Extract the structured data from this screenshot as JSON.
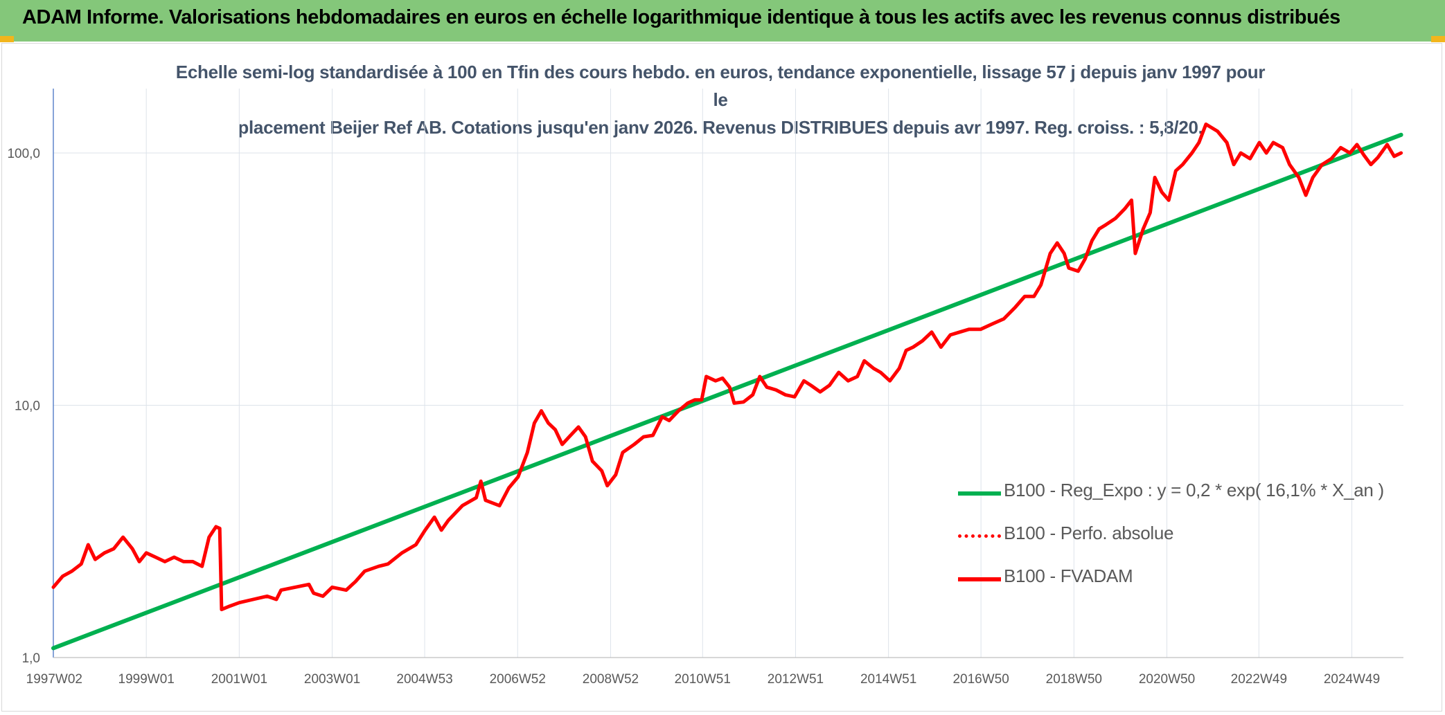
{
  "header": {
    "title": "ADAM Informe. Valorisations hebdomadaires en euros en échelle logarithmique identique à tous les actifs avec les revenus connus distribués"
  },
  "colors": {
    "header_bg": "#84c77a",
    "corner_accent": "#f2b51c",
    "trend": "#00b050",
    "fvadam": "#ff0000",
    "perfo": "#ff0000",
    "grid": "#dde3ea",
    "axis_text": "#595959",
    "subtitle": "#44546a"
  },
  "chart_data": {
    "type": "line",
    "title_line1": "Echelle semi-log standardisée à 100 en Tfin des cours hebdo. en euros, tendance exponentielle, lissage 57 j depuis janv 1997 pour le",
    "title_line2": "placement Beijer Ref AB. Cotations jusqu'en janv 2026. Revenus DISTRIBUES depuis avr 1997. Reg. croiss. : 5,8/20.",
    "y_scale": "log",
    "ylim": [
      1,
      180
    ],
    "y_ticks": [
      {
        "value": 1,
        "label": "1,0"
      },
      {
        "value": 10,
        "label": "10,0"
      },
      {
        "value": 100,
        "label": "100,0"
      }
    ],
    "xlim": [
      1997.0,
      2026.05
    ],
    "x_ticks": [
      {
        "value": 1997.02,
        "label": "1997W02"
      },
      {
        "value": 1999.0,
        "label": "1999W01"
      },
      {
        "value": 2001.0,
        "label": "2001W01"
      },
      {
        "value": 2003.0,
        "label": "2003W01"
      },
      {
        "value": 2004.99,
        "label": "2004W53"
      },
      {
        "value": 2006.99,
        "label": "2006W52"
      },
      {
        "value": 2008.99,
        "label": "2008W52"
      },
      {
        "value": 2010.97,
        "label": "2010W51"
      },
      {
        "value": 2012.97,
        "label": "2012W51"
      },
      {
        "value": 2014.97,
        "label": "2014W51"
      },
      {
        "value": 2016.96,
        "label": "2016W50"
      },
      {
        "value": 2018.96,
        "label": "2018W50"
      },
      {
        "value": 2020.96,
        "label": "2020W50"
      },
      {
        "value": 2022.94,
        "label": "2022W49"
      },
      {
        "value": 2024.94,
        "label": "2024W49"
      }
    ],
    "grid": true,
    "legend_position": "right",
    "series": [
      {
        "name": "B100 - Reg_Expo : y = 0,2 * exp( 16,1% *  X_an )",
        "style": "solid",
        "points": [
          [
            1997.0,
            1.09
          ],
          [
            2026.0,
            118
          ]
        ]
      },
      {
        "name": "B100 - Perfo. absolue",
        "style": "dotted",
        "points": []
      },
      {
        "name": "B100 - FVADAM",
        "style": "solid",
        "points": [
          [
            1997.0,
            1.9
          ],
          [
            1997.2,
            2.1
          ],
          [
            1997.4,
            2.2
          ],
          [
            1997.6,
            2.35
          ],
          [
            1997.75,
            2.8
          ],
          [
            1997.9,
            2.45
          ],
          [
            1998.1,
            2.6
          ],
          [
            1998.3,
            2.7
          ],
          [
            1998.5,
            3.0
          ],
          [
            1998.7,
            2.7
          ],
          [
            1998.85,
            2.4
          ],
          [
            1999.0,
            2.6
          ],
          [
            1999.2,
            2.5
          ],
          [
            1999.4,
            2.4
          ],
          [
            1999.6,
            2.5
          ],
          [
            1999.8,
            2.4
          ],
          [
            2000.0,
            2.4
          ],
          [
            2000.2,
            2.3
          ],
          [
            2000.35,
            3.0
          ],
          [
            2000.5,
            3.3
          ],
          [
            2000.58,
            3.25
          ],
          [
            2000.62,
            1.55
          ],
          [
            2000.8,
            1.6
          ],
          [
            2001.0,
            1.65
          ],
          [
            2001.3,
            1.7
          ],
          [
            2001.6,
            1.75
          ],
          [
            2001.8,
            1.7
          ],
          [
            2001.9,
            1.85
          ],
          [
            2002.2,
            1.9
          ],
          [
            2002.5,
            1.95
          ],
          [
            2002.6,
            1.8
          ],
          [
            2002.8,
            1.75
          ],
          [
            2003.0,
            1.9
          ],
          [
            2003.3,
            1.85
          ],
          [
            2003.5,
            2.0
          ],
          [
            2003.7,
            2.2
          ],
          [
            2004.0,
            2.3
          ],
          [
            2004.2,
            2.35
          ],
          [
            2004.5,
            2.6
          ],
          [
            2004.8,
            2.8
          ],
          [
            2005.0,
            3.2
          ],
          [
            2005.2,
            3.6
          ],
          [
            2005.35,
            3.2
          ],
          [
            2005.5,
            3.5
          ],
          [
            2005.8,
            4.0
          ],
          [
            2006.1,
            4.3
          ],
          [
            2006.2,
            5.0
          ],
          [
            2006.3,
            4.2
          ],
          [
            2006.6,
            4.0
          ],
          [
            2006.8,
            4.7
          ],
          [
            2007.0,
            5.2
          ],
          [
            2007.2,
            6.5
          ],
          [
            2007.35,
            8.5
          ],
          [
            2007.5,
            9.5
          ],
          [
            2007.65,
            8.5
          ],
          [
            2007.8,
            8.0
          ],
          [
            2007.95,
            7.0
          ],
          [
            2008.1,
            7.5
          ],
          [
            2008.3,
            8.2
          ],
          [
            2008.45,
            7.5
          ],
          [
            2008.6,
            6.0
          ],
          [
            2008.8,
            5.5
          ],
          [
            2008.92,
            4.8
          ],
          [
            2009.1,
            5.3
          ],
          [
            2009.25,
            6.5
          ],
          [
            2009.5,
            7.0
          ],
          [
            2009.7,
            7.5
          ],
          [
            2009.9,
            7.6
          ],
          [
            2010.1,
            9.0
          ],
          [
            2010.25,
            8.7
          ],
          [
            2010.45,
            9.5
          ],
          [
            2010.65,
            10.2
          ],
          [
            2010.8,
            10.5
          ],
          [
            2010.95,
            10.5
          ],
          [
            2011.05,
            13.0
          ],
          [
            2011.25,
            12.5
          ],
          [
            2011.4,
            12.8
          ],
          [
            2011.55,
            11.8
          ],
          [
            2011.65,
            10.2
          ],
          [
            2011.85,
            10.3
          ],
          [
            2012.05,
            11.0
          ],
          [
            2012.2,
            13.0
          ],
          [
            2012.35,
            11.8
          ],
          [
            2012.55,
            11.5
          ],
          [
            2012.75,
            11.0
          ],
          [
            2012.95,
            10.8
          ],
          [
            2013.15,
            12.5
          ],
          [
            2013.3,
            12.0
          ],
          [
            2013.5,
            11.3
          ],
          [
            2013.7,
            12.0
          ],
          [
            2013.9,
            13.5
          ],
          [
            2014.1,
            12.5
          ],
          [
            2014.3,
            13.0
          ],
          [
            2014.45,
            15.0
          ],
          [
            2014.65,
            14.0
          ],
          [
            2014.8,
            13.5
          ],
          [
            2015.0,
            12.5
          ],
          [
            2015.2,
            14.0
          ],
          [
            2015.35,
            16.5
          ],
          [
            2015.5,
            17.0
          ],
          [
            2015.7,
            18.0
          ],
          [
            2015.9,
            19.5
          ],
          [
            2016.1,
            17.0
          ],
          [
            2016.3,
            19.0
          ],
          [
            2016.5,
            19.5
          ],
          [
            2016.7,
            20.0
          ],
          [
            2016.95,
            20.0
          ],
          [
            2017.2,
            21.0
          ],
          [
            2017.45,
            22.0
          ],
          [
            2017.7,
            24.5
          ],
          [
            2017.9,
            27.0
          ],
          [
            2018.1,
            27.0
          ],
          [
            2018.25,
            30.0
          ],
          [
            2018.45,
            40.0
          ],
          [
            2018.6,
            44.0
          ],
          [
            2018.75,
            40.0
          ],
          [
            2018.85,
            35.0
          ],
          [
            2019.05,
            34.0
          ],
          [
            2019.2,
            38.0
          ],
          [
            2019.35,
            45.0
          ],
          [
            2019.5,
            50.0
          ],
          [
            2019.65,
            52.0
          ],
          [
            2019.85,
            55.0
          ],
          [
            2020.05,
            60.0
          ],
          [
            2020.2,
            65.0
          ],
          [
            2020.28,
            40.0
          ],
          [
            2020.45,
            50.0
          ],
          [
            2020.6,
            58.0
          ],
          [
            2020.7,
            80.0
          ],
          [
            2020.85,
            70.0
          ],
          [
            2021.0,
            65.0
          ],
          [
            2021.15,
            85.0
          ],
          [
            2021.3,
            90.0
          ],
          [
            2021.5,
            100.0
          ],
          [
            2021.65,
            110.0
          ],
          [
            2021.8,
            130.0
          ],
          [
            2022.05,
            122.0
          ],
          [
            2022.25,
            110.0
          ],
          [
            2022.4,
            90.0
          ],
          [
            2022.55,
            100.0
          ],
          [
            2022.75,
            95.0
          ],
          [
            2022.95,
            110.0
          ],
          [
            2023.1,
            100.0
          ],
          [
            2023.25,
            110.0
          ],
          [
            2023.45,
            105.0
          ],
          [
            2023.6,
            90.0
          ],
          [
            2023.8,
            80.0
          ],
          [
            2023.95,
            68.0
          ],
          [
            2024.1,
            80.0
          ],
          [
            2024.3,
            90.0
          ],
          [
            2024.5,
            95.0
          ],
          [
            2024.7,
            105.0
          ],
          [
            2024.9,
            100.0
          ],
          [
            2025.05,
            108.0
          ],
          [
            2025.2,
            98.0
          ],
          [
            2025.35,
            90.0
          ],
          [
            2025.5,
            96.0
          ],
          [
            2025.7,
            108.0
          ],
          [
            2025.85,
            97.0
          ],
          [
            2026.0,
            100.0
          ]
        ]
      }
    ]
  }
}
